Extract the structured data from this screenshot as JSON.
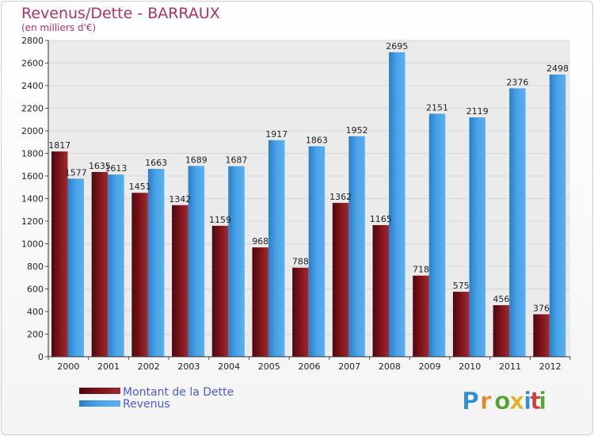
{
  "colors": {
    "debt": "#7a1218",
    "debt_light": "#a02830",
    "revenue": "#3d95de",
    "revenue_light": "#5aaeed",
    "grid": "#d8d8d8",
    "plot_bg": "#ebebeb"
  },
  "logo": {
    "letters": [
      "P",
      "r",
      "o",
      "x",
      "i",
      "t",
      "i"
    ],
    "colors": [
      "#2f8fd8",
      "#e8862a",
      "#54a630",
      "#e8b020",
      "#2f8fd8",
      "#d04040",
      "#54a630"
    ]
  },
  "chart_data": {
    "type": "bar",
    "title": "Revenus/Dette - BARRAUX",
    "subtitle": "(en milliers d'€)",
    "xlabel": "",
    "ylabel": "",
    "ylim": [
      0,
      2800
    ],
    "yticks": [
      0,
      200,
      400,
      600,
      800,
      1000,
      1200,
      1400,
      1600,
      1800,
      2000,
      2200,
      2400,
      2600,
      2800
    ],
    "grid": true,
    "legend_position": "bottom-left",
    "categories": [
      "2000",
      "2001",
      "2002",
      "2003",
      "2004",
      "2005",
      "2006",
      "2007",
      "2008",
      "2009",
      "2010",
      "2011",
      "2012"
    ],
    "series": [
      {
        "name": "Montant de la Dette",
        "values": [
          1817,
          1635,
          1451,
          1342,
          1159,
          968,
          788,
          1362,
          1165,
          718,
          575,
          456,
          376
        ],
        "labels": [
          "1817",
          "1635",
          "1451",
          "1342",
          "1159",
          "968",
          "788",
          "1362",
          "1165",
          "718",
          "575",
          "456",
          "376"
        ]
      },
      {
        "name": "Revenus",
        "values": [
          1577,
          1613,
          1663,
          1689,
          1687,
          1917,
          1863,
          1952,
          2695,
          2151,
          2119,
          2376,
          2498
        ],
        "labels": [
          "1577",
          "1613",
          "1663",
          "1689",
          "1687",
          "1917",
          "1863",
          "1952",
          "2695",
          "2151",
          "2119",
          "2376",
          "2498"
        ]
      }
    ]
  }
}
